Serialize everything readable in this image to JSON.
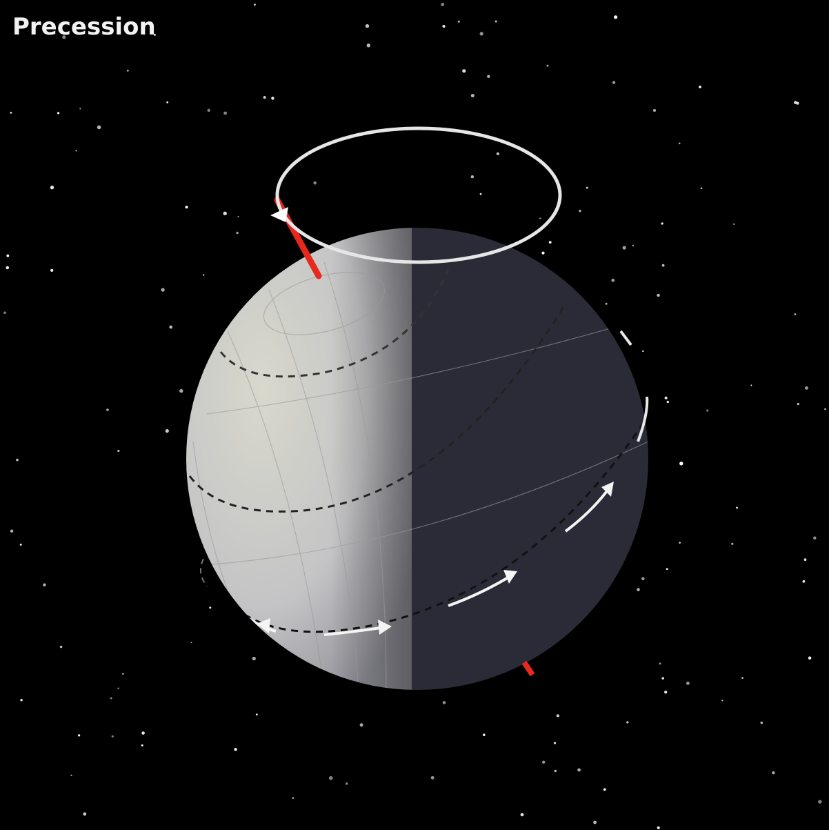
{
  "title": "Precession"
}
